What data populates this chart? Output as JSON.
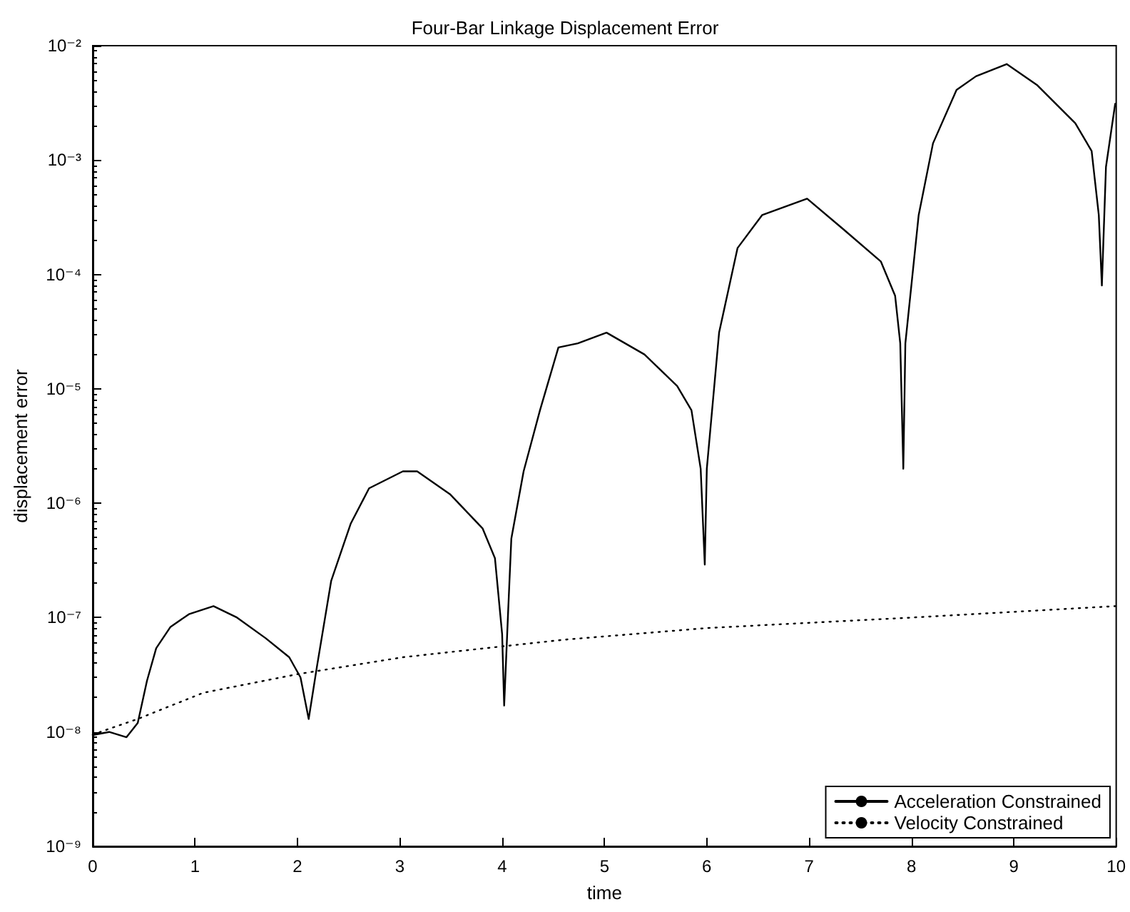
{
  "chart_data": {
    "type": "line",
    "title": "Four-Bar Linkage Displacement Error",
    "xlabel": "time",
    "ylabel": "displacement error",
    "log": "y",
    "grid": false,
    "legend": "bottom right",
    "marker": "none",
    "xlim": [
      0,
      10
    ],
    "xticks": [
      0,
      1,
      2,
      3,
      4,
      5,
      6,
      7,
      8,
      9,
      10
    ],
    "ylim": [
      1e-09,
      0.01
    ],
    "yticks": [
      {
        "value": 1e-09,
        "label": "10⁻⁹"
      },
      {
        "value": 1e-08,
        "label": "10⁻⁸"
      },
      {
        "value": 1e-07,
        "label": "10⁻⁷"
      },
      {
        "value": 1e-06,
        "label": "10⁻⁶"
      },
      {
        "value": 1e-05,
        "label": "10⁻⁵"
      },
      {
        "value": 0.0001,
        "label": "10⁻⁴"
      },
      {
        "value": 0.001,
        "label": "10⁻³"
      },
      {
        "value": 0.01,
        "label": "10⁻²"
      }
    ],
    "series": [
      {
        "name": "Acceleration Constrained",
        "color": "#000000",
        "line_style": "solid",
        "x": [
          0,
          0.16,
          0.33,
          0.44,
          0.53,
          0.62,
          0.76,
          0.94,
          1.18,
          1.41,
          1.69,
          1.92,
          2.03,
          2.11,
          2.19,
          2.33,
          2.52,
          2.7,
          3.03,
          3.17,
          3.49,
          3.81,
          3.93,
          4.0,
          4.02,
          4.06,
          4.09,
          4.21,
          4.37,
          4.55,
          4.74,
          5.02,
          5.39,
          5.71,
          5.85,
          5.94,
          5.98,
          6.0,
          6.12,
          6.3,
          6.54,
          6.98,
          7.33,
          7.7,
          7.84,
          7.89,
          7.92,
          7.94,
          8.07,
          8.21,
          8.44,
          8.63,
          8.93,
          9.23,
          9.6,
          9.76,
          9.83,
          9.86,
          9.9,
          9.99
        ],
        "values": [
          9.4e-09,
          1e-08,
          9e-09,
          1.2e-08,
          2.8e-08,
          5.4e-08,
          8.3e-08,
          1.07e-07,
          1.26e-07,
          1e-07,
          6.6e-08,
          4.5e-08,
          3e-08,
          1.3e-08,
          3.7e-08,
          2.1e-07,
          6.6e-07,
          1.35e-06,
          1.9e-06,
          1.9e-06,
          1.2e-06,
          6e-07,
          3.3e-07,
          7.2e-08,
          1.7e-08,
          1.2e-07,
          4.9e-07,
          1.9e-06,
          6.5e-06,
          2.3e-05,
          2.5e-05,
          3.1e-05,
          2e-05,
          1.06e-05,
          6.5e-06,
          2e-06,
          2.9e-07,
          2e-06,
          3.1e-05,
          0.00017,
          0.00033,
          0.00046,
          0.00025,
          0.00013,
          6.5e-05,
          2.5e-05,
          2e-06,
          2.5e-05,
          0.00033,
          0.0014,
          0.0041,
          0.0054,
          0.0069,
          0.0045,
          0.0021,
          0.0012,
          0.00033,
          8e-05,
          0.00087,
          0.0031
        ]
      },
      {
        "name": "Velocity Constrained",
        "color": "#000000",
        "line_style": "dotted",
        "x": [
          0,
          0.44,
          1.08,
          2.0,
          3.03,
          4.0,
          4.6,
          6.0,
          8.0,
          10
        ],
        "values": [
          9.5e-09,
          1.3e-08,
          2.2e-08,
          3.2e-08,
          4.5e-08,
          5.6e-08,
          6.4e-08,
          8.1e-08,
          1e-07,
          1.26e-07
        ]
      }
    ]
  }
}
